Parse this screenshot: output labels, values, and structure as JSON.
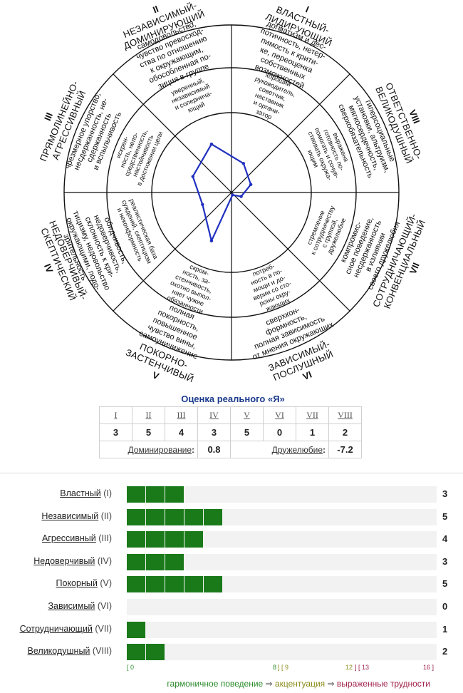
{
  "octants": [
    {
      "num": "I",
      "name_lines": [
        "ВЛАСТНЫЙ-",
        "ЛИДИРУЮЩИЙ"
      ],
      "outer_lines": [
        "догматизм и дес-",
        "потичность, нетер-",
        "пимость к крити-",
        "ке, переоценка",
        "собственных",
        "возможностей"
      ],
      "mid_lines": [
        "хороший",
        "руководитель,",
        "советчик,",
        "наставник",
        "и органи-",
        "затор"
      ]
    },
    {
      "num": "II",
      "name_lines": [
        "НЕЗАВИСИМЫЙ-",
        "ДОМИНИРУЮЩИЙ"
      ],
      "outer_lines": [
        "самодовольство,",
        "чувство превосход-",
        "ства по отношению",
        "к окружающим,",
        "обособленная по-",
        "зиция в группе"
      ],
      "mid_lines": [
        "уверенный,",
        "независимый",
        "и сопернича-",
        "ющий"
      ]
    },
    {
      "num": "III",
      "name_lines": [
        "ПРЯМОЛИНЕЙНО-",
        "АГРЕССИВНЫЙ"
      ],
      "outer_lines": [
        "чрезмерное упорство,",
        "несдержанность, не-",
        "сдержанность",
        "и вспыльчивость"
      ],
      "mid_lines": [
        "искрен-",
        "ность, непо-",
        "средственность,",
        "настойчивость",
        "в достижении цели"
      ]
    },
    {
      "num": "IV",
      "name_lines": [
        "НЕДОВЕРЧИВЫЙ-",
        "СКЕПТИЧЕСКИЙ"
      ],
      "outer_lines": [
        "обидчивость,",
        "недоверчивость,",
        "склонность к кри-",
        "тицизму, недовольство",
        "окружающими, подо-",
        "зрительность"
      ],
      "mid_lines": [
        "реалистическая база",
        "суждений, скептицизм",
        "и неконформность"
      ]
    },
    {
      "num": "V",
      "name_lines": [
        "ПОКОРНО-",
        "ЗАСТЕНЧИВЫЙ"
      ],
      "outer_lines": [
        "полная",
        "покорность,",
        "повышенное",
        "чувство вины,",
        "самоуничижение"
      ],
      "mid_lines": [
        "скром-",
        "ность, за-",
        "стенчивость,",
        "охотно выпол-",
        "няет чужие",
        "обязанности"
      ]
    },
    {
      "num": "VI",
      "name_lines": [
        "ЗАВИСИМЫЙ-",
        "ПОСЛУШНЫЙ"
      ],
      "outer_lines": [
        "сверхкон-",
        "формность,",
        "полная зависимость",
        "от мнения окружающих"
      ],
      "mid_lines": [
        "потреб-",
        "ность в по-",
        "мощи и до-",
        "верии со сто-",
        "роны окру-",
        "жающих"
      ]
    },
    {
      "num": "VII",
      "name_lines": [
        "СОТРУДНИЧАЮЩИЙ-",
        "КОНВЕНЦИАЛЬНЫЙ"
      ],
      "outer_lines": [
        "компромис-",
        "сное поведение,",
        "несдержанность",
        "в излиянии",
        "своего дружелюбия"
      ],
      "mid_lines": [
        "стремление",
        "к сотрудничеству",
        "с группой,",
        "дружелюбие"
      ]
    },
    {
      "num": "VIII",
      "name_lines": [
        "ОТВЕТСТВЕННО-",
        "ВЕЛИКОДУШНЫЙ"
      ],
      "outer_lines": [
        "гиперсоциальные",
        "установки, альтруизм,",
        "мягкосердечность,",
        "сверхобязательность"
      ],
      "mid_lines": [
        "выражена",
        "готовность по-",
        "помогать и сочув-",
        "ствовать окружа-",
        "ющим"
      ]
    }
  ],
  "chart_data": [
    {
      "type": "radar",
      "title": "",
      "categories": [
        "I",
        "II",
        "III",
        "IV",
        "V",
        "VI",
        "VII",
        "VIII"
      ],
      "values": [
        3,
        5,
        4,
        3,
        5,
        0,
        1,
        2
      ],
      "r_max": 16,
      "line_color": "#1f2fbf"
    },
    {
      "type": "bar",
      "orientation": "horizontal",
      "title": "",
      "categories": [
        "Властный (I)",
        "Независимый (II)",
        "Агрессивный (III)",
        "Недоверчивый (IV)",
        "Покорный (V)",
        "Зависимый (VI)",
        "Сотрудничающий (VII)",
        "Великодушный (VIII)"
      ],
      "values": [
        3,
        5,
        4,
        3,
        5,
        0,
        1,
        2
      ],
      "xlim": [
        0,
        16
      ],
      "bar_color": "#1a7a1a",
      "track_color": "#f2f2f2"
    }
  ],
  "score_table": {
    "title": "Оценка реального «Я»",
    "numerals": [
      "I",
      "II",
      "III",
      "IV",
      "V",
      "VI",
      "VII",
      "VIII"
    ],
    "values": [
      "3",
      "5",
      "4",
      "3",
      "5",
      "0",
      "1",
      "2"
    ],
    "dominance_label": "Доминирование",
    "dominance_value": "0.8",
    "friendliness_label": "Дружелюбие",
    "friendliness_value": "-7.2",
    "colon": ":"
  },
  "bars": [
    {
      "name": "Властный",
      "roman": "(I)",
      "value": 3,
      "score": "3"
    },
    {
      "name": "Независимый",
      "roman": "(II)",
      "value": 5,
      "score": "5"
    },
    {
      "name": "Агрессивный",
      "roman": "(III)",
      "value": 4,
      "score": "4"
    },
    {
      "name": "Недоверчивый",
      "roman": "(IV)",
      "value": 3,
      "score": "3"
    },
    {
      "name": "Покорный",
      "roman": "(V)",
      "value": 5,
      "score": "5"
    },
    {
      "name": "Зависимый",
      "roman": "(VI)",
      "value": 0,
      "score": "0"
    },
    {
      "name": "Сотрудничающий",
      "roman": "(VII)",
      "value": 1,
      "score": "1"
    },
    {
      "name": "Великодушный",
      "roman": "(VIII)",
      "value": 2,
      "score": "2"
    }
  ],
  "scale": {
    "mark_0": "[ 0",
    "mark_8_9": "] [ 9",
    "mark_8": "8",
    "mark_12": "12",
    "mark_13": "] [ 13",
    "mark_16": "16 ]"
  },
  "legend": {
    "harmonious": "гармоничное поведение",
    "accentuation": "акцентуация",
    "difficulties": "выраженные трудности",
    "arrow": "⇒"
  },
  "colors": {
    "harmonious": "#2a8a2a",
    "accentuation": "#8a8a1a",
    "difficulties": "#a0224a"
  }
}
